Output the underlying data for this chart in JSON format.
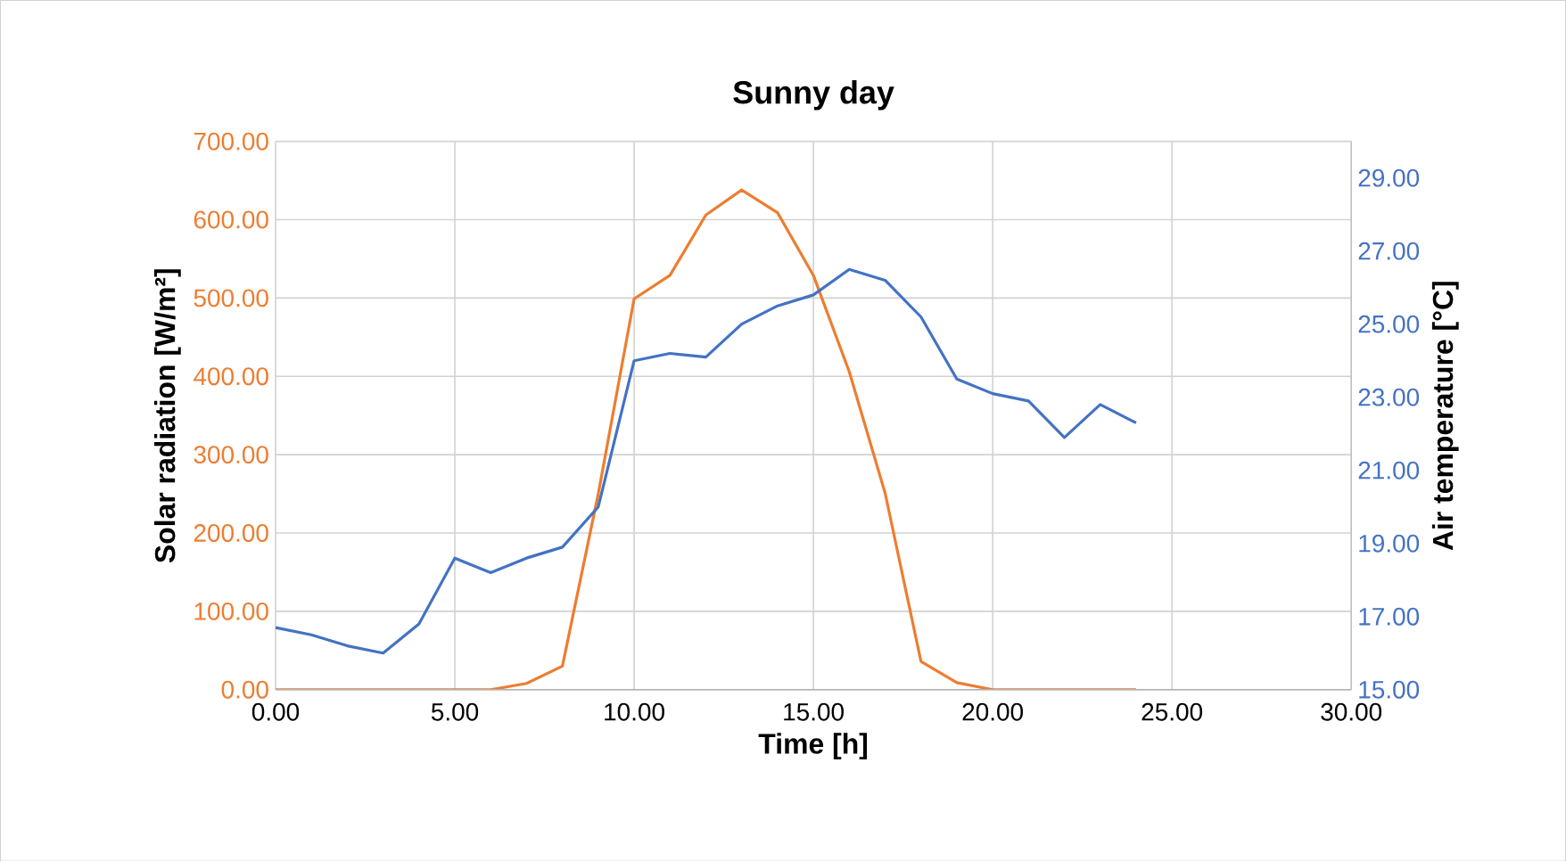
{
  "chart_data": {
    "type": "line",
    "title": "Sunny day",
    "xlabel": "Time [h]",
    "ylabel": "Solar radiation [W/m²]",
    "y2label": "Air temperature [°C]",
    "x": [
      0,
      1,
      2,
      3,
      4,
      5,
      6,
      7,
      8,
      9,
      10,
      11,
      12,
      13,
      14,
      15,
      16,
      17,
      18,
      19,
      20,
      21,
      22,
      23,
      24
    ],
    "series": [
      {
        "color": "#ed7d31",
        "values": [
          0,
          0,
          0,
          0,
          0,
          0,
          0,
          8,
          30,
          250,
          499,
          529,
          606,
          638,
          609,
          529,
          406,
          251,
          36,
          9,
          0,
          0,
          0,
          0,
          0
        ]
      },
      {
        "color": "#4472c4",
        "axis": "y2",
        "values": [
          16.7,
          16.5,
          16.2,
          16.0,
          16.8,
          18.6,
          18.2,
          18.6,
          18.9,
          20.0,
          24.0,
          24.2,
          24.1,
          25.0,
          25.5,
          25.8,
          26.5,
          26.2,
          25.2,
          23.5,
          23.1,
          22.9,
          21.9,
          22.8,
          22.3
        ]
      }
    ],
    "xlim": [
      0,
      30
    ],
    "xticks": [
      {
        "value": 0,
        "label": "0.00"
      },
      {
        "value": 5,
        "label": "5.00"
      },
      {
        "value": 10,
        "label": "10.00"
      },
      {
        "value": 15,
        "label": "15.00"
      },
      {
        "value": 20,
        "label": "20.00"
      },
      {
        "value": 25,
        "label": "25.00"
      },
      {
        "value": 30,
        "label": "30.00"
      }
    ],
    "ylim": [
      0,
      700
    ],
    "yticks": [
      {
        "value": 0,
        "label": "0.00"
      },
      {
        "value": 100,
        "label": "100.00"
      },
      {
        "value": 200,
        "label": "200.00"
      },
      {
        "value": 300,
        "label": "300.00"
      },
      {
        "value": 400,
        "label": "400.00"
      },
      {
        "value": 500,
        "label": "500.00"
      },
      {
        "value": 600,
        "label": "600.00"
      },
      {
        "value": 700,
        "label": "700.00"
      }
    ],
    "y2lim": [
      15,
      30
    ],
    "y2ticks": [
      {
        "value": 15,
        "label": "15.00"
      },
      {
        "value": 17,
        "label": "17.00"
      },
      {
        "value": 19,
        "label": "19.00"
      },
      {
        "value": 21,
        "label": "21.00"
      },
      {
        "value": 23,
        "label": "23.00"
      },
      {
        "value": 25,
        "label": "25.00"
      },
      {
        "value": 27,
        "label": "27.00"
      },
      {
        "value": 29,
        "label": "29.00"
      }
    ],
    "grid": true,
    "marker": "none",
    "line_style": "solid"
  }
}
